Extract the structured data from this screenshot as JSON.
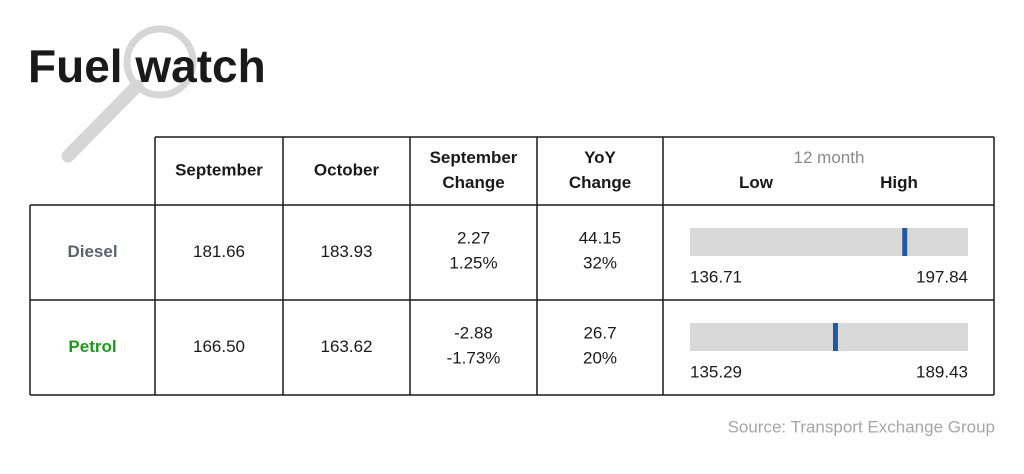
{
  "header": {
    "title": "Fuel watch"
  },
  "table": {
    "columns": [
      [
        "September"
      ],
      [
        "October"
      ],
      [
        "September",
        "Change"
      ],
      [
        "YoY",
        "Change"
      ]
    ],
    "range_header": {
      "title": "12 month",
      "low": "Low",
      "high": "High"
    },
    "rows": [
      {
        "name": "Diesel",
        "color": "#5b6371",
        "september": "181.66",
        "october": "183.93",
        "change": [
          "2.27",
          "1.25%"
        ],
        "yoy": [
          "44.15",
          "32%"
        ],
        "low": "136.71",
        "high": "197.84"
      },
      {
        "name": "Petrol",
        "color": "#1e9a1e",
        "september": "166.50",
        "october": "163.62",
        "change": [
          "-2.88",
          "-1.73%"
        ],
        "yoy": [
          "26.7",
          "20%"
        ],
        "low": "135.29",
        "high": "189.43"
      }
    ]
  },
  "footer": {
    "source": "Source: Transport Exchange Group"
  }
}
